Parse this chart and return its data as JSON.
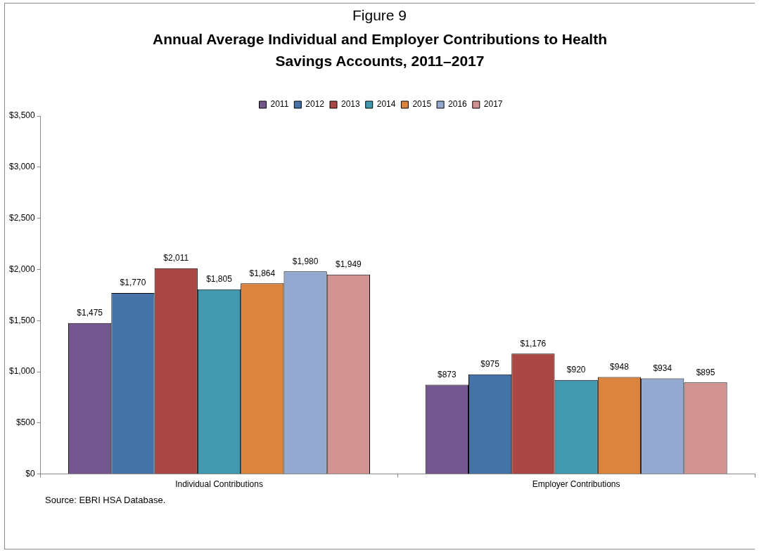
{
  "chart_data": {
    "type": "bar",
    "title": "Figure 9",
    "subtitle": "Annual Average Individual and Employer Contributions to Health Savings Accounts, 2011–2017",
    "categories": [
      "Individual Contributions",
      "Employer Contributions"
    ],
    "series": [
      {
        "name": "2011",
        "color": "#75578f",
        "values": [
          1475,
          873
        ],
        "value_labels": [
          "$1,475",
          "$873"
        ]
      },
      {
        "name": "2012",
        "color": "#4572a7",
        "values": [
          1770,
          975
        ],
        "value_labels": [
          "$1,770",
          "$975"
        ]
      },
      {
        "name": "2013",
        "color": "#aa4643",
        "values": [
          2011,
          1176
        ],
        "value_labels": [
          "$2,011",
          "$1,176"
        ]
      },
      {
        "name": "2014",
        "color": "#4198af",
        "values": [
          1805,
          920
        ],
        "value_labels": [
          "$1,805",
          "$920"
        ]
      },
      {
        "name": "2015",
        "color": "#db843d",
        "values": [
          1864,
          948
        ],
        "value_labels": [
          "$1,864",
          "$948"
        ]
      },
      {
        "name": "2016",
        "color": "#93a9cf",
        "values": [
          1980,
          934
        ],
        "value_labels": [
          "$1,980",
          "$934"
        ]
      },
      {
        "name": "2017",
        "color": "#d19392",
        "values": [
          1949,
          895
        ],
        "value_labels": [
          "$1,949",
          "$895"
        ]
      }
    ],
    "ylim": [
      0,
      3500
    ],
    "yticks": [
      {
        "value": 0,
        "label": "$0"
      },
      {
        "value": 500,
        "label": "$500"
      },
      {
        "value": 1000,
        "label": "$1,000"
      },
      {
        "value": 1500,
        "label": "$1,500"
      },
      {
        "value": 2000,
        "label": "$2,000"
      },
      {
        "value": 2500,
        "label": "$2,500"
      },
      {
        "value": 3000,
        "label": "$3,000"
      },
      {
        "value": 3500,
        "label": "$3,500"
      }
    ],
    "grid": false,
    "legend": "top",
    "annotations": [
      "Source: EBRI HSA Database."
    ]
  }
}
